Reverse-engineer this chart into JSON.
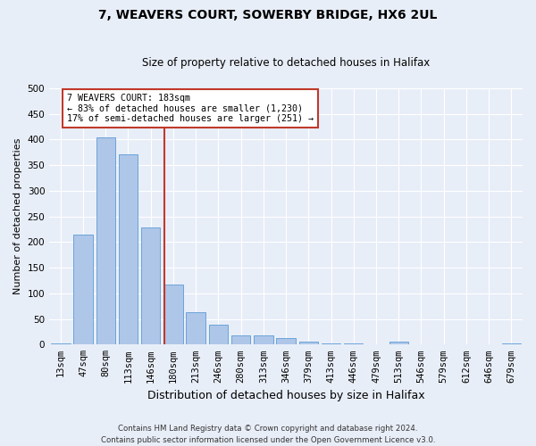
{
  "title1": "7, WEAVERS COURT, SOWERBY BRIDGE, HX6 2UL",
  "title2": "Size of property relative to detached houses in Halifax",
  "xlabel": "Distribution of detached houses by size in Halifax",
  "ylabel": "Number of detached properties",
  "categories": [
    "13sqm",
    "47sqm",
    "80sqm",
    "113sqm",
    "146sqm",
    "180sqm",
    "213sqm",
    "246sqm",
    "280sqm",
    "313sqm",
    "346sqm",
    "379sqm",
    "413sqm",
    "446sqm",
    "479sqm",
    "513sqm",
    "546sqm",
    "579sqm",
    "612sqm",
    "646sqm",
    "679sqm"
  ],
  "values": [
    2,
    215,
    404,
    372,
    228,
    118,
    63,
    38,
    18,
    18,
    12,
    6,
    2,
    2,
    0,
    5,
    0,
    0,
    0,
    0,
    2
  ],
  "bar_color": "#aec6e8",
  "bar_edge_color": "#5b9bd5",
  "annotation_title": "7 WEAVERS COURT: 183sqm",
  "annotation_line1": "← 83% of detached houses are smaller (1,230)",
  "annotation_line2": "17% of semi-detached houses are larger (251) →",
  "vline_color": "#c0392b",
  "annotation_box_color": "#ffffff",
  "annotation_box_edge": "#c0392b",
  "ylim": [
    0,
    500
  ],
  "yticks": [
    0,
    50,
    100,
    150,
    200,
    250,
    300,
    350,
    400,
    450,
    500
  ],
  "background_color": "#e8eef8",
  "footer_line1": "Contains HM Land Registry data © Crown copyright and database right 2024.",
  "footer_line2": "Contains public sector information licensed under the Open Government Licence v3.0.",
  "title1_fontsize": 10,
  "title2_fontsize": 8.5,
  "xlabel_fontsize": 9,
  "ylabel_fontsize": 8,
  "tick_fontsize": 7.5,
  "vline_bar_index": 5
}
